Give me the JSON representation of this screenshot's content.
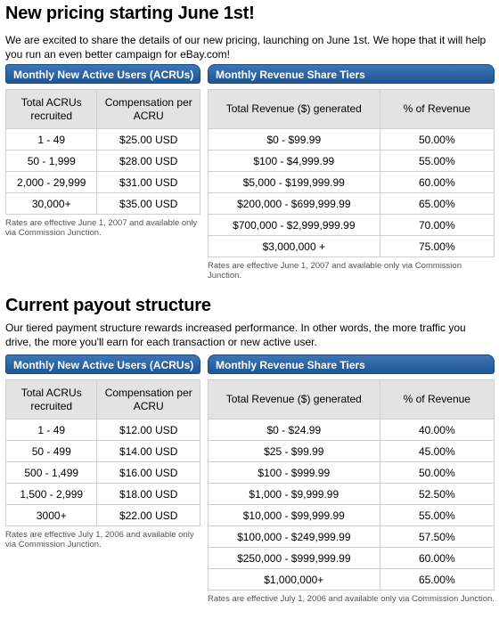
{
  "new_pricing": {
    "title": "New pricing starting June 1st!",
    "intro": "We are excited to share the details of our new pricing, launching on June 1st. We hope that it will help you run an even better campaign for eBay.com!",
    "acru": {
      "header": "Monthly New Active Users (ACRUs)",
      "columns": [
        "Total ACRUs recruited",
        "Compensation per ACRU"
      ],
      "rows": [
        [
          "1 - 49",
          "$25.00 USD"
        ],
        [
          "50 - 1,999",
          "$28.00 USD"
        ],
        [
          "2,000 - 29,999",
          "$31.00 USD"
        ],
        [
          "30,000+",
          "$35.00 USD"
        ]
      ],
      "note": "Rates are effective June 1, 2007 and available only via Commission Junction."
    },
    "revenue": {
      "header": "Monthly Revenue Share Tiers",
      "columns": [
        "Total Revenue ($) generated",
        "% of Revenue"
      ],
      "rows": [
        [
          "$0 - $99.99",
          "50.00%"
        ],
        [
          "$100 - $4,999.99",
          "55.00%"
        ],
        [
          "$5,000 - $199,999.99",
          "60.00%"
        ],
        [
          "$200,000 - $699,999.99",
          "65.00%"
        ],
        [
          "$700,000 - $2,999,999.99",
          "70.00%"
        ],
        [
          "$3,000,000 +",
          "75.00%"
        ]
      ],
      "note": "Rates are effective June 1, 2007 and available only via Commission Junction."
    }
  },
  "current_payout": {
    "title": "Current payout structure",
    "intro": "Our tiered payment structure rewards increased performance. In other words, the more traffic you drive, the more you'll earn for each transaction or new active user.",
    "acru": {
      "header": "Monthly New Active Users (ACRUs)",
      "columns": [
        "Total ACRUs recruited",
        "Compensation per ACRU"
      ],
      "rows": [
        [
          "1 - 49",
          "$12.00 USD"
        ],
        [
          "50 - 499",
          "$14.00 USD"
        ],
        [
          "500 - 1,499",
          "$16.00 USD"
        ],
        [
          "1,500 - 2,999",
          "$18.00 USD"
        ],
        [
          "3000+",
          "$22.00 USD"
        ]
      ],
      "note": "Rates are effective July 1, 2006 and available only via Commission Junction."
    },
    "revenue": {
      "header": "Monthly Revenue Share Tiers",
      "columns": [
        "Total Revenue ($) generated",
        "% of Revenue"
      ],
      "rows": [
        [
          "$0 - $24.99",
          "40.00%"
        ],
        [
          "$25 - $99.99",
          "45.00%"
        ],
        [
          "$100 - $999.99",
          "50.00%"
        ],
        [
          "$1,000 - $9,999.99",
          "52.50%"
        ],
        [
          "$10,000 - $99,999.99",
          "55.00%"
        ],
        [
          "$100,000 - $249,999.99",
          "57.50%"
        ],
        [
          "$250,000 - $999,999.99",
          "60.00%"
        ],
        [
          "$1,000,000+",
          "65.00%"
        ]
      ],
      "note": "Rates are effective July 1, 2006 and available only via Commission Junction."
    }
  }
}
